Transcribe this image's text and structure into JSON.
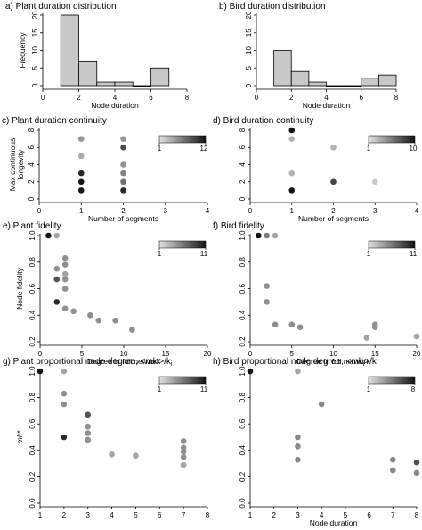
{
  "chart_data": [
    {
      "id": "a",
      "type": "bar",
      "title": "a) Plant duration distribution",
      "xlabel": "Node duration",
      "ylabel": "Frequency",
      "xlim": [
        0,
        8
      ],
      "ylim": [
        0,
        20
      ],
      "xticks": [
        0,
        2,
        4,
        6,
        8
      ],
      "yticks": [
        0,
        5,
        10,
        15,
        20
      ],
      "bins": [
        [
          1,
          2
        ],
        [
          2,
          3
        ],
        [
          3,
          4
        ],
        [
          4,
          5
        ],
        [
          5,
          6
        ],
        [
          6,
          7
        ]
      ],
      "values": [
        20,
        7,
        1,
        1,
        0,
        5
      ],
      "bar_color": "#c8c8c8"
    },
    {
      "id": "b",
      "type": "bar",
      "title": "b) Bird duration distribution",
      "xlabel": "Node duration",
      "ylabel": "",
      "xlim": [
        0,
        8
      ],
      "ylim": [
        0,
        20
      ],
      "xticks": [
        0,
        2,
        4,
        6,
        8
      ],
      "yticks": [
        0,
        5,
        10,
        15,
        20
      ],
      "bins": [
        [
          1,
          2
        ],
        [
          2,
          3
        ],
        [
          3,
          4
        ],
        [
          4,
          5
        ],
        [
          5,
          6
        ],
        [
          6,
          7
        ],
        [
          7,
          8
        ]
      ],
      "values": [
        10,
        4,
        1,
        0,
        0,
        2,
        3
      ],
      "bar_color": "#c8c8c8"
    },
    {
      "id": "c",
      "type": "scatter",
      "title": "c) Plant duration continuity",
      "xlabel": "Number of segments",
      "ylabel": "Max continuous longevity",
      "ylabel_lines": [
        "Max continuous",
        "longevity"
      ],
      "xlim": [
        0,
        4
      ],
      "ylim": [
        0,
        8
      ],
      "xticks": [
        0,
        1,
        2,
        3,
        4
      ],
      "yticks": [
        0,
        2,
        4,
        6,
        8
      ],
      "colorbar": {
        "min_label": "1",
        "max_label": "12",
        "min": 1,
        "max": 12
      },
      "points": [
        {
          "x": 1,
          "y": 7,
          "c": 5
        },
        {
          "x": 1,
          "y": 5,
          "c": 4
        },
        {
          "x": 1,
          "y": 3,
          "c": 11
        },
        {
          "x": 1,
          "y": 2,
          "c": 12
        },
        {
          "x": 1,
          "y": 1,
          "c": 12
        },
        {
          "x": 2,
          "y": 7,
          "c": 5
        },
        {
          "x": 2,
          "y": 6,
          "c": 9
        },
        {
          "x": 2,
          "y": 4,
          "c": 5
        },
        {
          "x": 2,
          "y": 3,
          "c": 6
        },
        {
          "x": 2,
          "y": 2,
          "c": 7
        },
        {
          "x": 2,
          "y": 1,
          "c": 11
        }
      ]
    },
    {
      "id": "d",
      "type": "scatter",
      "title": "d) Bird duration continuity",
      "xlabel": "Number of segments",
      "ylabel": "",
      "xlim": [
        0,
        4
      ],
      "ylim": [
        0,
        8
      ],
      "xticks": [
        0,
        1,
        2,
        3,
        4
      ],
      "yticks": [
        0,
        2,
        4,
        6,
        8
      ],
      "colorbar": {
        "min_label": "1",
        "max_label": "10",
        "min": 1,
        "max": 10
      },
      "points": [
        {
          "x": 1,
          "y": 8,
          "c": 10
        },
        {
          "x": 1,
          "y": 7,
          "c": 3
        },
        {
          "x": 1,
          "y": 3,
          "c": 3
        },
        {
          "x": 1,
          "y": 1,
          "c": 10
        },
        {
          "x": 2,
          "y": 6,
          "c": 3
        },
        {
          "x": 2,
          "y": 2,
          "c": 8
        },
        {
          "x": 3,
          "y": 2,
          "c": 2
        }
      ]
    },
    {
      "id": "e",
      "type": "scatter",
      "title": "e) Plant fidelity",
      "xlabel": "Degree in full network",
      "ylabel": "Node fidelity",
      "xlim": [
        0,
        20
      ],
      "ylim": [
        0.2,
        1.0
      ],
      "xticks": [
        0,
        5,
        10,
        15,
        20
      ],
      "yticks": [
        0.2,
        0.4,
        0.6,
        0.8,
        1.0
      ],
      "yticklabels": [
        "0.2",
        "0.4",
        "0.6",
        "0.8",
        "1.0"
      ],
      "colorbar": {
        "min_label": "1",
        "max_label": "11",
        "min": 1,
        "max": 11
      },
      "points": [
        {
          "x": 1,
          "y": 1.0,
          "c": 11
        },
        {
          "x": 2,
          "y": 1.0,
          "c": 4
        },
        {
          "x": 2,
          "y": 0.75,
          "c": 5
        },
        {
          "x": 2,
          "y": 0.67,
          "c": 8
        },
        {
          "x": 2,
          "y": 0.5,
          "c": 10
        },
        {
          "x": 3,
          "y": 0.83,
          "c": 5
        },
        {
          "x": 3,
          "y": 0.78,
          "c": 5
        },
        {
          "x": 3,
          "y": 0.71,
          "c": 4
        },
        {
          "x": 3,
          "y": 0.67,
          "c": 5
        },
        {
          "x": 3,
          "y": 0.6,
          "c": 5
        },
        {
          "x": 3,
          "y": 0.45,
          "c": 5
        },
        {
          "x": 4,
          "y": 0.43,
          "c": 5
        },
        {
          "x": 6,
          "y": 0.4,
          "c": 5
        },
        {
          "x": 7,
          "y": 0.36,
          "c": 5
        },
        {
          "x": 9,
          "y": 0.36,
          "c": 5
        },
        {
          "x": 11,
          "y": 0.29,
          "c": 5
        }
      ]
    },
    {
      "id": "f",
      "type": "scatter",
      "title": "f) Bird fidelity",
      "xlabel": "Degree in full network",
      "ylabel": "",
      "xlim": [
        0,
        20
      ],
      "ylim": [
        0.2,
        1.0
      ],
      "xticks": [
        0,
        5,
        10,
        15,
        20
      ],
      "yticks": [
        0.2,
        0.4,
        0.6,
        0.8,
        1.0
      ],
      "yticklabels": [
        "0.2",
        "0.4",
        "0.6",
        "0.8",
        "1.0"
      ],
      "colorbar": {
        "min_label": "1",
        "max_label": "11",
        "min": 1,
        "max": 11
      },
      "points": [
        {
          "x": 1,
          "y": 1.0,
          "c": 11
        },
        {
          "x": 2,
          "y": 1.0,
          "c": 6
        },
        {
          "x": 3,
          "y": 1.0,
          "c": 4
        },
        {
          "x": 2,
          "y": 0.62,
          "c": 5
        },
        {
          "x": 2,
          "y": 0.5,
          "c": 5
        },
        {
          "x": 3,
          "y": 0.33,
          "c": 5
        },
        {
          "x": 5,
          "y": 0.33,
          "c": 5
        },
        {
          "x": 6,
          "y": 0.31,
          "c": 5
        },
        {
          "x": 14,
          "y": 0.23,
          "c": 4
        },
        {
          "x": 15,
          "y": 0.33,
          "c": 5
        },
        {
          "x": 15,
          "y": 0.31,
          "c": 5
        },
        {
          "x": 20,
          "y": 0.24,
          "c": 4
        }
      ]
    },
    {
      "id": "g",
      "type": "scatter",
      "title": "g) Plant proportional node degree, <mk",
      "title_sub1": "i",
      "title_mid": ">/k",
      "title_sub2": "i",
      "xlabel": "",
      "ylabel": "mk*",
      "xlim": [
        1,
        8
      ],
      "ylim": [
        0.0,
        1.0
      ],
      "xticks": [
        1,
        2,
        3,
        4,
        5,
        6,
        7,
        8
      ],
      "yticks": [
        0.0,
        0.2,
        0.4,
        0.6,
        0.8,
        1.0
      ],
      "yticklabels": [
        "0.0",
        "0.2",
        "0.4",
        "0.6",
        "0.8",
        "1.0"
      ],
      "colorbar": {
        "min_label": "1",
        "max_label": "11",
        "min": 1,
        "max": 11
      },
      "points": [
        {
          "x": 1,
          "y": 1.0,
          "c": 11
        },
        {
          "x": 2,
          "y": 1.0,
          "c": 4
        },
        {
          "x": 2,
          "y": 0.83,
          "c": 5
        },
        {
          "x": 2,
          "y": 0.75,
          "c": 5
        },
        {
          "x": 2,
          "y": 0.5,
          "c": 10
        },
        {
          "x": 3,
          "y": 0.67,
          "c": 8
        },
        {
          "x": 3,
          "y": 0.58,
          "c": 5
        },
        {
          "x": 3,
          "y": 0.53,
          "c": 5
        },
        {
          "x": 3,
          "y": 0.48,
          "c": 5
        },
        {
          "x": 4,
          "y": 0.37,
          "c": 4
        },
        {
          "x": 5,
          "y": 0.36,
          "c": 4
        },
        {
          "x": 7,
          "y": 0.47,
          "c": 5
        },
        {
          "x": 7,
          "y": 0.42,
          "c": 5
        },
        {
          "x": 7,
          "y": 0.39,
          "c": 5
        },
        {
          "x": 7,
          "y": 0.35,
          "c": 5
        },
        {
          "x": 7,
          "y": 0.29,
          "c": 4
        }
      ]
    },
    {
      "id": "h",
      "type": "scatter",
      "title": "h) Bird proportional node degree, <mk",
      "title_sub1": "i",
      "title_mid": ">/k",
      "title_sub2": "i",
      "xlabel": "Node duration",
      "ylabel": "",
      "xlim": [
        1,
        8
      ],
      "ylim": [
        0.0,
        1.0
      ],
      "xticks": [
        1,
        2,
        3,
        4,
        5,
        6,
        7,
        8
      ],
      "yticks": [
        0.0,
        0.2,
        0.4,
        0.6,
        0.8,
        1.0
      ],
      "yticklabels": [
        "0.0",
        "0.2",
        "0.4",
        "0.6",
        "0.8",
        "1.0"
      ],
      "colorbar": {
        "min_label": "1",
        "max_label": "8",
        "min": 1,
        "max": 8
      },
      "points": [
        {
          "x": 1,
          "y": 1.0,
          "c": 8
        },
        {
          "x": 3,
          "y": 1.0,
          "c": 3
        },
        {
          "x": 3,
          "y": 0.5,
          "c": 4
        },
        {
          "x": 3,
          "y": 0.43,
          "c": 4
        },
        {
          "x": 3,
          "y": 0.33,
          "c": 4
        },
        {
          "x": 4,
          "y": 0.75,
          "c": 4
        },
        {
          "x": 7,
          "y": 0.33,
          "c": 4
        },
        {
          "x": 7,
          "y": 0.25,
          "c": 4
        },
        {
          "x": 8,
          "y": 0.31,
          "c": 6
        },
        {
          "x": 8,
          "y": 0.23,
          "c": 4
        }
      ]
    }
  ]
}
